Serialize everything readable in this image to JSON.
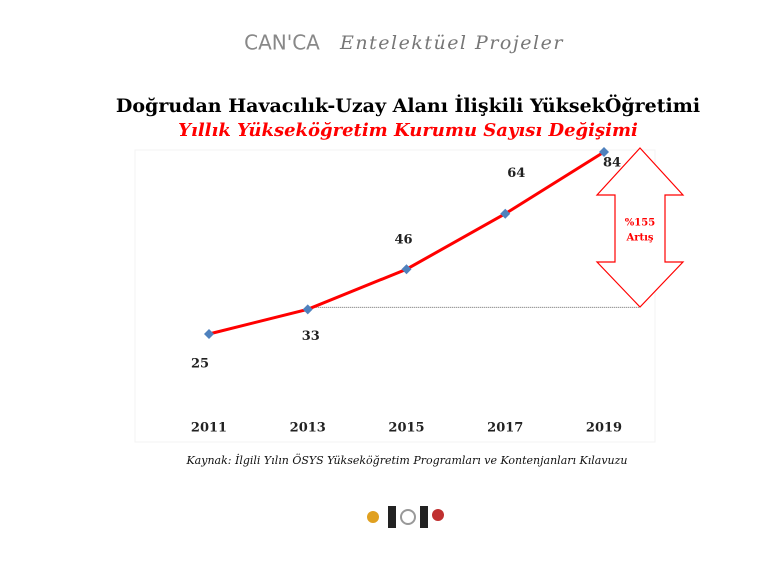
{
  "header": {
    "logo": "CAN'CA",
    "brand": "Entelektüel Projeler"
  },
  "chart_data": {
    "type": "line",
    "title": "Doğrudan Havacılık-Uzay Alanı İlişkili YüksekÖğretimi",
    "subtitle": "Yıllık Yükseköğretim Kurumu Sayısı Değişimi",
    "categories": [
      "2011",
      "2013",
      "2015",
      "2017",
      "2019"
    ],
    "series": [
      {
        "name": null,
        "color": "#ff0000",
        "marker_color": "#4f81bd",
        "values": [
          25,
          33,
          46,
          64,
          84
        ]
      }
    ],
    "annotation": [
      "%155",
      "Artış"
    ],
    "source": "Kaynak: İlgili Yılın ÖSYS Yükseköğretim Programları ve Kontenjanları Kılavuzu"
  }
}
